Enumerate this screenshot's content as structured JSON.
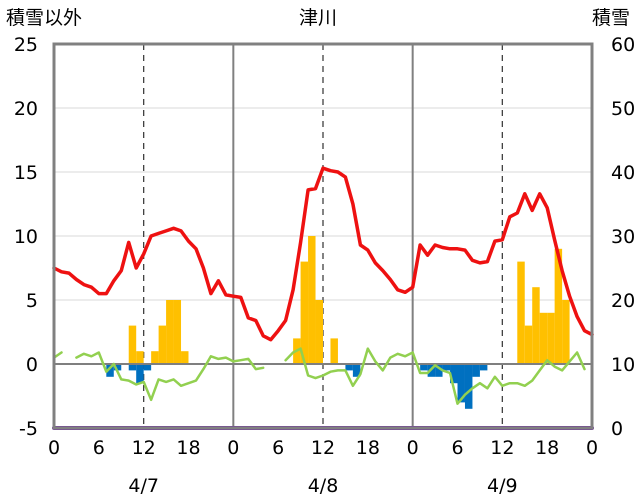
{
  "chart_data": {
    "type": "combo",
    "title": "津川",
    "left_axis_label": "積雪以外",
    "right_axis_label": "積雪",
    "left_ylim": [
      -5,
      25
    ],
    "left_ticks": [
      "25",
      "20",
      "15",
      "10",
      "5",
      "0",
      "-5"
    ],
    "right_ylim": [
      0,
      60
    ],
    "right_ticks": [
      "60",
      "50",
      "40",
      "30",
      "20",
      "10",
      "0"
    ],
    "x_hours_total": 72,
    "x_tick_labels": [
      "0",
      "6",
      "12",
      "18",
      "0",
      "6",
      "12",
      "18",
      "0",
      "6",
      "12",
      "18",
      "0"
    ],
    "date_labels": [
      "4/7",
      "4/8",
      "4/9"
    ],
    "colors": {
      "temperature": "#ee1111",
      "green_line": "#92d050",
      "precip_bars": "#ffc000",
      "negative_bars": "#0070c0",
      "snow_depth": "#7030a0",
      "frame": "#808080",
      "grid": "#404040"
    },
    "series": [
      {
        "name": "red line",
        "kind": "line",
        "axis": "left",
        "values": [
          7.5,
          7.2,
          7.1,
          6.6,
          6.2,
          6.0,
          5.5,
          5.5,
          6.5,
          7.3,
          9.5,
          7.5,
          8.6,
          10.0,
          10.2,
          10.4,
          10.6,
          10.4,
          9.6,
          9.0,
          7.5,
          5.5,
          6.5,
          5.4,
          5.3,
          5.2,
          3.6,
          3.4,
          2.2,
          1.9,
          2.6,
          3.4,
          5.8,
          9.5,
          13.6,
          13.7,
          15.3,
          15.1,
          15.0,
          14.6,
          12.5,
          9.3,
          8.9,
          7.9,
          7.3,
          6.6,
          5.8,
          5.6,
          6.0,
          9.3,
          8.5,
          9.3,
          9.1,
          9.0,
          9.0,
          8.9,
          8.1,
          7.9,
          8.0,
          9.6,
          9.7,
          11.5,
          11.8,
          13.3,
          12.0,
          13.3,
          12.2,
          9.7,
          7.3,
          5.3,
          3.7,
          2.6,
          2.3
        ]
      },
      {
        "name": "green line",
        "kind": "line",
        "axis": "left",
        "values": [
          0.5,
          0.9,
          null,
          0.5,
          0.8,
          0.6,
          0.9,
          -0.6,
          0.0,
          -1.2,
          -1.3,
          -1.6,
          -1.4,
          -2.8,
          -1.2,
          -1.4,
          -1.2,
          -1.7,
          -1.5,
          -1.3,
          -0.4,
          0.6,
          0.4,
          0.5,
          0.2,
          0.3,
          0.4,
          -0.4,
          -0.3,
          null,
          null,
          0.3,
          0.9,
          1.2,
          -0.9,
          -1.1,
          -0.9,
          -0.6,
          -0.5,
          -0.5,
          -1.7,
          -0.8,
          1.2,
          0.2,
          -0.5,
          0.5,
          0.8,
          0.6,
          0.9,
          -0.7,
          -0.7,
          -0.1,
          -0.5,
          -0.7,
          -3.1,
          -2.4,
          -1.9,
          -1.5,
          -1.9,
          -1.0,
          -1.7,
          -1.5,
          -1.5,
          -1.7,
          -1.3,
          -0.5,
          0.3,
          -0.2,
          -0.5,
          0.2,
          0.9,
          -0.4,
          null
        ]
      },
      {
        "name": "positive bars",
        "kind": "bar",
        "axis": "left",
        "values": [
          0,
          0,
          0,
          0,
          0,
          0,
          0,
          0,
          0,
          0,
          3,
          1,
          0,
          1,
          3,
          5,
          5,
          1,
          0,
          0,
          0,
          0,
          0,
          0,
          0,
          0,
          0,
          0,
          0,
          0,
          0,
          0,
          2,
          8,
          10,
          5,
          0,
          2,
          0,
          0,
          0,
          0,
          0,
          0,
          0,
          0,
          0,
          0,
          0,
          0,
          0,
          0,
          0,
          0,
          0,
          0,
          0,
          0,
          0,
          0,
          0,
          0,
          8,
          3,
          6,
          4,
          4,
          9,
          5,
          0,
          0,
          0
        ]
      },
      {
        "name": "negative bars",
        "kind": "bar",
        "axis": "left",
        "values": [
          0,
          0,
          0,
          0,
          0,
          0,
          0,
          -1,
          -0.5,
          0,
          -0.5,
          -1.5,
          -0.5,
          0,
          0,
          0,
          0,
          0,
          0,
          0,
          0,
          0,
          0,
          0,
          0,
          0,
          0,
          0,
          0,
          0,
          0,
          0,
          0,
          0,
          0,
          0,
          0,
          0,
          0,
          -0.5,
          -1,
          0,
          0,
          0,
          0,
          0,
          0,
          0,
          0,
          -0.5,
          -1,
          -1,
          -0.5,
          -1.5,
          -3,
          -3.5,
          -1,
          -0.5,
          0,
          0,
          0,
          0,
          0,
          0,
          0,
          0,
          0,
          0,
          0,
          0,
          0,
          0
        ]
      },
      {
        "name": "snow depth",
        "kind": "line",
        "axis": "right",
        "values": [
          0,
          0,
          0,
          0,
          0,
          0,
          0,
          0,
          0,
          0,
          0,
          0,
          0,
          0,
          0,
          0,
          0,
          0,
          0,
          0,
          0,
          0,
          0,
          0,
          0,
          0,
          0,
          0,
          0,
          0,
          0,
          0,
          0,
          0,
          0,
          0,
          0,
          0,
          0,
          0,
          0,
          0,
          0,
          0,
          0,
          0,
          0,
          0,
          0,
          0,
          0,
          0,
          0,
          0,
          0,
          0,
          0,
          0,
          0,
          0,
          0,
          0,
          0,
          0,
          0,
          0,
          0,
          0,
          0,
          0,
          0,
          0,
          0
        ]
      }
    ]
  }
}
